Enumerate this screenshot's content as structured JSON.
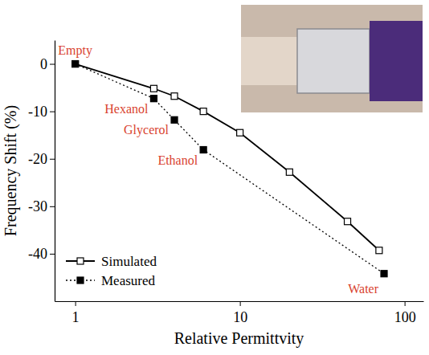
{
  "chart_data": {
    "type": "line",
    "x_label": "Relative Permittvity",
    "y_label": "Frequency Shift (%)",
    "log": "x",
    "xlim": [
      0.75,
      130
    ],
    "xticks": [
      1,
      10,
      100
    ],
    "ylim": [
      -50,
      5
    ],
    "yticks": [
      0,
      -10,
      -20,
      -30,
      -40
    ],
    "legend": "lower left",
    "series": [
      {
        "name": "Simulated",
        "color": "#000000",
        "marker": "square-open",
        "line_style": "solid",
        "x": [
          1,
          3,
          4,
          6,
          10,
          20,
          45,
          70
        ],
        "values": [
          0,
          -5.2,
          -6.8,
          -10,
          -14.5,
          -22.8,
          -33.2,
          -39.3
        ]
      },
      {
        "name": "Measured",
        "color": "#000000",
        "marker": "square",
        "line_style": "dotted",
        "x": [
          1,
          3,
          4,
          6,
          75
        ],
        "values": [
          0,
          -7.3,
          -11.8,
          -18.1,
          -44.2
        ]
      }
    ],
    "annotations": [
      {
        "text": "Empty",
        "x": 1,
        "y": 0
      },
      {
        "text": "Hexanol",
        "x": 3,
        "y": -7.3
      },
      {
        "text": "Glycerol",
        "x": 4,
        "y": -11.8
      },
      {
        "text": "Ethanol",
        "x": 6,
        "y": -18.1
      },
      {
        "text": "Water",
        "x": 75,
        "y": -44.2
      }
    ]
  }
}
